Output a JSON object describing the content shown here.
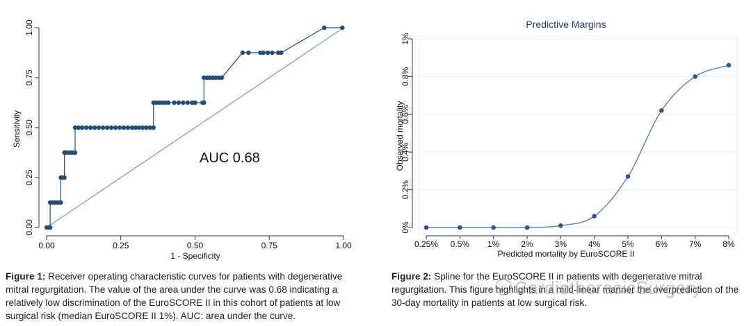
{
  "chart_data": [
    {
      "type": "line",
      "xlabel": "1 - Specificity",
      "ylabel": "Sensitivity",
      "xlim": [
        0,
        1
      ],
      "ylim": [
        0,
        1
      ],
      "xticks": [
        0,
        0.25,
        0.5,
        0.75,
        1
      ],
      "yticks": [
        0,
        0.25,
        0.5,
        0.75,
        1
      ],
      "xtick_labels": [
        "0.00",
        "0.25",
        "0.50",
        "0.75",
        "1.00"
      ],
      "ytick_labels": [
        "0.00",
        "0.25",
        "0.50",
        "0.75",
        "1.00"
      ],
      "annotation": "AUC 0.68",
      "grid": false,
      "colors": {
        "roc": "#1f4e79",
        "reference": "#7fa89a",
        "axis": "#333333"
      },
      "series": [
        {
          "x": [
            0.0,
            0.008,
            0.012,
            0.012,
            0.02,
            0.028,
            0.036,
            0.044,
            0.048,
            0.048,
            0.054,
            0.06,
            0.06,
            0.066,
            0.074,
            0.082,
            0.09,
            0.096,
            0.096,
            0.108,
            0.12,
            0.134,
            0.148,
            0.162,
            0.176,
            0.19,
            0.204,
            0.218,
            0.232,
            0.246,
            0.26,
            0.274,
            0.288,
            0.3,
            0.312,
            0.324,
            0.336,
            0.348,
            0.36,
            0.36,
            0.37,
            0.38,
            0.39,
            0.4,
            0.41,
            0.43,
            0.445,
            0.46,
            0.475,
            0.49,
            0.5,
            0.525,
            0.53,
            0.53,
            0.54,
            0.55,
            0.56,
            0.57,
            0.58,
            0.59,
            0.66,
            0.68,
            0.72,
            0.73,
            0.745,
            0.76,
            0.78,
            0.79,
            0.935,
            0.996
          ],
          "y": [
            0.0,
            0.0,
            0.0,
            0.125,
            0.125,
            0.125,
            0.125,
            0.125,
            0.125,
            0.25,
            0.25,
            0.25,
            0.375,
            0.375,
            0.375,
            0.375,
            0.375,
            0.375,
            0.5,
            0.5,
            0.5,
            0.5,
            0.5,
            0.5,
            0.5,
            0.5,
            0.5,
            0.5,
            0.5,
            0.5,
            0.5,
            0.5,
            0.5,
            0.5,
            0.5,
            0.5,
            0.5,
            0.5,
            0.5,
            0.625,
            0.625,
            0.625,
            0.625,
            0.625,
            0.625,
            0.625,
            0.625,
            0.625,
            0.625,
            0.625,
            0.625,
            0.625,
            0.625,
            0.75,
            0.75,
            0.75,
            0.75,
            0.75,
            0.75,
            0.75,
            0.875,
            0.875,
            0.875,
            0.875,
            0.875,
            0.875,
            0.875,
            0.875,
            1.0,
            1.0
          ]
        },
        {
          "x": [
            0,
            1
          ],
          "y": [
            0,
            1
          ]
        }
      ]
    },
    {
      "type": "line",
      "title": "Predictive Margins",
      "xlabel": "Predicted mortality by EuroSCORE II",
      "ylabel": "Observed mortality",
      "categories": [
        "0.25%",
        "0.5%",
        "1%",
        "2%",
        "3%",
        "4%",
        "5%",
        "6%",
        "7%",
        "8%"
      ],
      "yticks": [
        0,
        0.2,
        0.4,
        0.6,
        0.8,
        1
      ],
      "ytick_labels": [
        "0%",
        "0.2%",
        "0.4%",
        "0.6%",
        "0.8%",
        "1%"
      ],
      "ylim": [
        0,
        1
      ],
      "grid": true,
      "colors": {
        "line": "#5b7fb8",
        "marker": "#2f5597",
        "title": "#1f3a78",
        "grid": "#e6eef6",
        "axis": "#333333"
      },
      "series": [
        {
          "values": [
            0.0,
            0.0,
            0.0,
            0.0,
            0.01,
            0.06,
            0.27,
            0.62,
            0.8,
            0.86
          ]
        }
      ]
    }
  ],
  "captions": {
    "fig1_label": "Figure 1:",
    "fig1_text": " Receiver operating characteristic curves for patients with degenerative mitral regurgitation. The value of the area under the curve was 0.68 indicating a relatively low discrimination of the EuroSCORE II in this cohort of patients at low surgical risk (median EuroSCORE II 1%). AUC: area under the curve.",
    "fig2_label": "Figure 2:",
    "fig2_text": " Spline for the EuroSCORE II in patients with degenerative mitral regurgitation. This figure highlights in a mild-linear manner the overprediction of the 30-day mortality in patients at low surgical risk."
  },
  "watermark": {
    "text": "CardiothoracicSurgery",
    "icon": "wechat-icon"
  }
}
